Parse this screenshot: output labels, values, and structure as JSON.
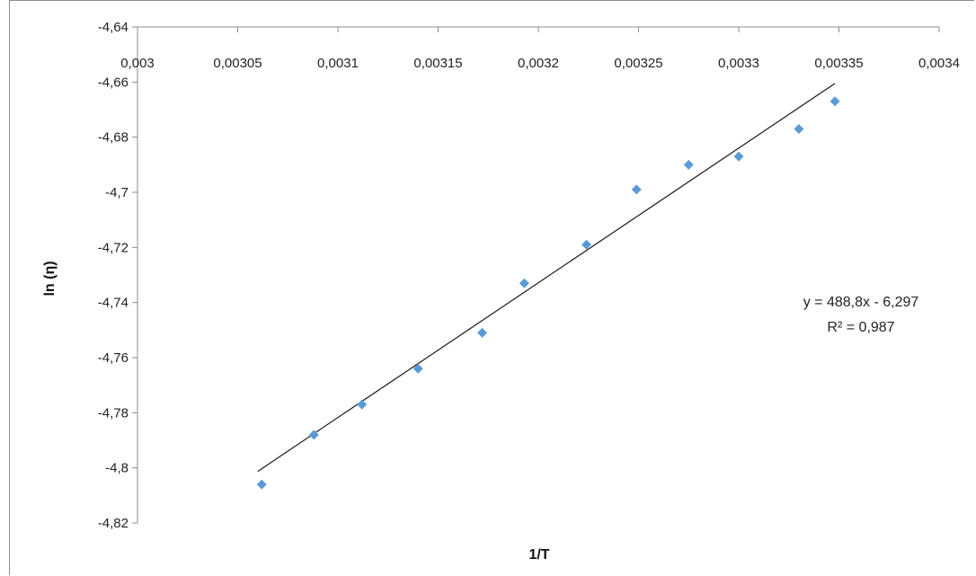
{
  "chart_data": {
    "type": "scatter",
    "xlabel": "1/T",
    "ylabel": "ln (η)",
    "xlim": [
      0.003,
      0.0034
    ],
    "ylim": [
      -4.82,
      -4.64
    ],
    "x_ticks": [
      "0,003",
      "0,00305",
      "0,0031",
      "0,00315",
      "0,0032",
      "0,00325",
      "0,0033",
      "0,00335",
      "0,0034"
    ],
    "x_tick_values": [
      0.003,
      0.00305,
      0.0031,
      0.00315,
      0.0032,
      0.00325,
      0.0033,
      0.00335,
      0.0034
    ],
    "y_ticks": [
      "-4,64",
      "-4,66",
      "-4,68",
      "-4,7",
      "-4,72",
      "-4,74",
      "-4,76",
      "-4,78",
      "-4,8",
      "-4,82"
    ],
    "y_tick_values": [
      -4.64,
      -4.66,
      -4.68,
      -4.7,
      -4.72,
      -4.74,
      -4.76,
      -4.78,
      -4.8,
      -4.82
    ],
    "series": [
      {
        "marker": "diamond",
        "color": "#5b9bd5",
        "x": [
          0.003062,
          0.003088,
          0.003112,
          0.00314,
          0.003172,
          0.003193,
          0.003224,
          0.003249,
          0.003275,
          0.0033,
          0.00333,
          0.003348
        ],
        "y": [
          -4.806,
          -4.788,
          -4.777,
          -4.764,
          -4.751,
          -4.733,
          -4.719,
          -4.699,
          -4.69,
          -4.687,
          -4.677,
          -4.667
        ]
      }
    ],
    "trendline": {
      "slope": 488.8,
      "intercept": -6.297,
      "x_range": [
        0.00306,
        0.003348
      ],
      "color": "#1a1a1a"
    },
    "equation_text": "y = 488,8x - 6,297",
    "r2_text": "R² = 0,987",
    "grid": false,
    "legend": "none"
  }
}
